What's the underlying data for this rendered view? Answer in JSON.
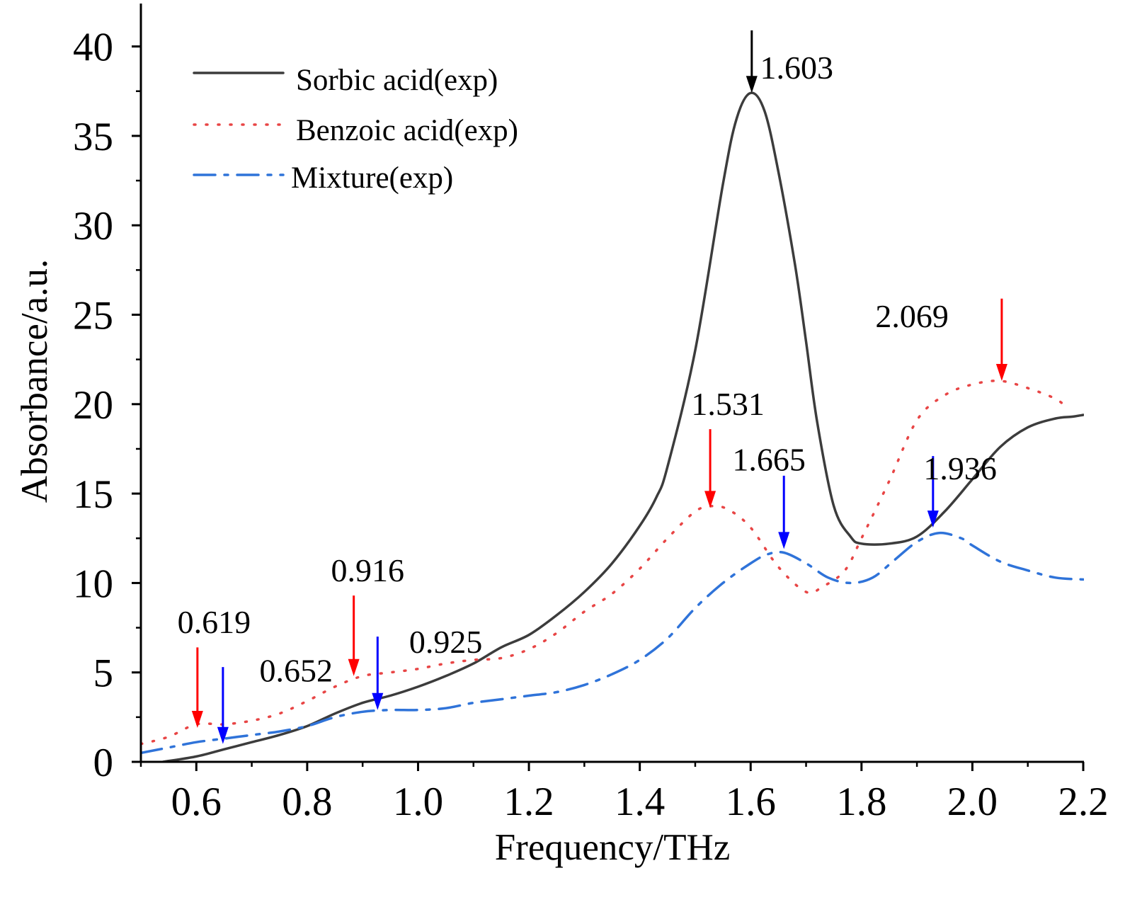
{
  "chart_data": {
    "type": "line",
    "title": "",
    "xlabel": "Frequency/THz",
    "ylabel": "Absorbance/a.u.",
    "xlim": [
      0.5,
      2.2
    ],
    "ylim": [
      0,
      42.4
    ],
    "xticks": [
      "0.6",
      "0.8",
      "1.0",
      "1.2",
      "1.4",
      "1.6",
      "1.8",
      "2.0",
      "2.2"
    ],
    "yticks": [
      "0",
      "5",
      "10",
      "15",
      "20",
      "25",
      "30",
      "35",
      "40"
    ],
    "grid": false,
    "legend": "top-left",
    "series": [
      {
        "name": "Sorbic acid(exp)",
        "color": "#3c3c3c",
        "dash": "solid",
        "x": [
          0.54,
          0.6,
          0.65,
          0.7,
          0.75,
          0.8,
          0.85,
          0.9,
          0.95,
          1.0,
          1.05,
          1.1,
          1.15,
          1.2,
          1.25,
          1.3,
          1.35,
          1.4,
          1.43,
          1.45,
          1.5,
          1.55,
          1.575,
          1.6,
          1.625,
          1.65,
          1.68,
          1.7,
          1.72,
          1.75,
          1.78,
          1.8,
          1.85,
          1.9,
          1.95,
          2.0,
          2.05,
          2.1,
          2.15,
          2.18,
          2.2
        ],
        "y": [
          0,
          0.3,
          0.7,
          1.1,
          1.5,
          2.0,
          2.7,
          3.3,
          3.7,
          4.2,
          4.8,
          5.5,
          6.4,
          7.1,
          8.2,
          9.5,
          11.1,
          13.2,
          14.8,
          16.5,
          23.0,
          32.3,
          36.0,
          37.4,
          36.4,
          33.0,
          27.8,
          23.5,
          19.0,
          14.3,
          12.6,
          12.2,
          12.2,
          12.6,
          14.0,
          15.8,
          17.6,
          18.7,
          19.2,
          19.3,
          19.4
        ]
      },
      {
        "name": "Benzoic acid(exp)",
        "color": "#e84545",
        "dash": "dotted",
        "x": [
          0.5,
          0.55,
          0.6,
          0.65,
          0.7,
          0.75,
          0.8,
          0.85,
          0.9,
          0.95,
          1.0,
          1.05,
          1.1,
          1.15,
          1.2,
          1.25,
          1.3,
          1.35,
          1.4,
          1.45,
          1.5,
          1.53,
          1.56,
          1.6,
          1.65,
          1.7,
          1.73,
          1.77,
          1.8,
          1.85,
          1.9,
          1.95,
          2.0,
          2.05,
          2.1,
          2.15,
          2.17
        ],
        "y": [
          1.0,
          1.4,
          2.1,
          2.1,
          2.3,
          2.7,
          3.4,
          4.2,
          4.8,
          5.0,
          5.2,
          5.5,
          5.7,
          5.8,
          6.3,
          7.2,
          8.4,
          9.4,
          10.8,
          12.5,
          14.0,
          14.3,
          14.1,
          13.1,
          10.9,
          9.5,
          9.8,
          10.7,
          12.5,
          15.7,
          19.1,
          20.5,
          21.1,
          21.3,
          20.9,
          20.3,
          19.8
        ]
      },
      {
        "name": "Mixture(exp)",
        "color": "#2f73d9",
        "dash": "dash-dot",
        "x": [
          0.5,
          0.55,
          0.6,
          0.65,
          0.7,
          0.75,
          0.8,
          0.85,
          0.9,
          0.95,
          1.0,
          1.05,
          1.1,
          1.15,
          1.2,
          1.25,
          1.3,
          1.35,
          1.4,
          1.45,
          1.5,
          1.55,
          1.6,
          1.63,
          1.66,
          1.7,
          1.74,
          1.78,
          1.82,
          1.86,
          1.9,
          1.94,
          1.98,
          2.0,
          2.05,
          2.1,
          2.15,
          2.2
        ],
        "y": [
          0.5,
          0.8,
          1.1,
          1.3,
          1.5,
          1.7,
          2.0,
          2.5,
          2.8,
          2.9,
          2.9,
          3.0,
          3.3,
          3.5,
          3.7,
          3.9,
          4.3,
          4.9,
          5.7,
          6.9,
          8.6,
          10.0,
          11.1,
          11.6,
          11.7,
          11.1,
          10.3,
          10.0,
          10.3,
          11.3,
          12.3,
          12.8,
          12.5,
          12.1,
          11.2,
          10.7,
          10.3,
          10.2
        ]
      }
    ],
    "annotations": [
      {
        "text": "1.603",
        "color": "#000000",
        "x": 1.602,
        "y_from": 40.9,
        "y_to": 37.4,
        "label_x": 1.683,
        "label_y": 38.2
      },
      {
        "text": "2.069",
        "color": "#ff0000",
        "x": 2.053,
        "y_from": 25.9,
        "y_to": 21.3,
        "label_x": 1.891,
        "label_y": 24.3
      },
      {
        "text": "1.531",
        "color": "#ff0000",
        "x": 1.527,
        "y_from": 18.6,
        "y_to": 14.2,
        "label_x": 1.559,
        "label_y": 19.4
      },
      {
        "text": "1.665",
        "color": "#0000ff",
        "x": 1.66,
        "y_from": 16.0,
        "y_to": 11.9,
        "label_x": 1.633,
        "label_y": 16.3
      },
      {
        "text": "1.936",
        "color": "#0000ff",
        "x": 1.929,
        "y_from": 17.1,
        "y_to": 13.1,
        "label_x": 1.978,
        "label_y": 15.8
      },
      {
        "text": "0.916",
        "color": "#ff0000",
        "x": 0.884,
        "y_from": 9.3,
        "y_to": 4.8,
        "label_x": 0.909,
        "label_y": 10.1
      },
      {
        "text": "0.925",
        "color": "#0000ff",
        "x": 0.927,
        "y_from": 7.0,
        "y_to": 2.9,
        "label_x": 1.05,
        "label_y": 6.1
      },
      {
        "text": "0.619",
        "color": "#ff0000",
        "x": 0.602,
        "y_from": 6.4,
        "y_to": 1.9,
        "label_x": 0.632,
        "label_y": 7.2
      },
      {
        "text": "0.652",
        "color": "#0000ff",
        "x": 0.648,
        "y_from": 5.3,
        "y_to": 1.0,
        "label_x": 0.78,
        "label_y": 4.5
      }
    ]
  }
}
